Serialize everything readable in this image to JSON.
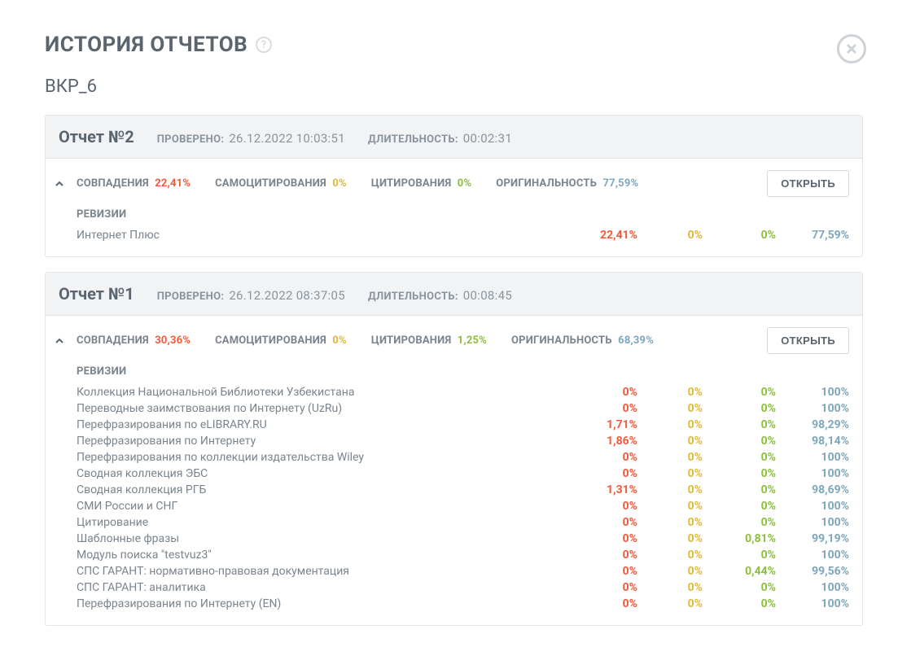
{
  "title": "ИСТОРИЯ ОТЧЕТОВ",
  "subtitle": "ВКР_6",
  "labels": {
    "checked": "ПРОВЕРЕНО:",
    "duration": "ДЛИТЕЛЬНОСТЬ:",
    "matches": "СОВПАДЕНИЯ",
    "selfcite": "САМОЦИТИРОВАНИЯ",
    "cite": "ЦИТИРОВАНИЯ",
    "orig": "ОРИГИНАЛЬНОСТЬ",
    "revisions": "РЕВИЗИИ",
    "open": "ОТКРЫТЬ"
  },
  "colors": {
    "red": "#f05a3c",
    "amber": "#e0b83a",
    "green": "#8bbf3d",
    "blue": "#7ea7bc"
  },
  "reports": [
    {
      "num": "Отчет №2",
      "checked": "26.12.2022 10:03:51",
      "duration": "00:02:31",
      "matches": "22,41%",
      "selfcite": "0%",
      "cite": "0%",
      "orig": "77,59%",
      "revisions": [
        {
          "name": "Интернет Плюс",
          "v": [
            "22,41%",
            "0%",
            "0%",
            "77,59%"
          ]
        }
      ]
    },
    {
      "num": "Отчет №1",
      "checked": "26.12.2022 08:37:05",
      "duration": "00:08:45",
      "matches": "30,36%",
      "selfcite": "0%",
      "cite": "1,25%",
      "orig": "68,39%",
      "revisions": [
        {
          "name": "Коллекция Национальной Библиотеки Узбекистана",
          "v": [
            "0%",
            "0%",
            "0%",
            "100%"
          ]
        },
        {
          "name": "Переводные заимствования по Интернету (UzRu)",
          "v": [
            "0%",
            "0%",
            "0%",
            "100%"
          ]
        },
        {
          "name": "Перефразирования по eLIBRARY.RU",
          "v": [
            "1,71%",
            "0%",
            "0%",
            "98,29%"
          ]
        },
        {
          "name": "Перефразирования по Интернету",
          "v": [
            "1,86%",
            "0%",
            "0%",
            "98,14%"
          ]
        },
        {
          "name": "Перефразирования по коллекции издательства Wiley",
          "v": [
            "0%",
            "0%",
            "0%",
            "100%"
          ]
        },
        {
          "name": "Сводная коллекция ЭБС",
          "v": [
            "0%",
            "0%",
            "0%",
            "100%"
          ]
        },
        {
          "name": "Сводная коллекция РГБ",
          "v": [
            "1,31%",
            "0%",
            "0%",
            "98,69%"
          ]
        },
        {
          "name": "СМИ России и СНГ",
          "v": [
            "0%",
            "0%",
            "0%",
            "100%"
          ]
        },
        {
          "name": "Цитирование",
          "v": [
            "0%",
            "0%",
            "0%",
            "100%"
          ]
        },
        {
          "name": "Шаблонные фразы",
          "v": [
            "0%",
            "0%",
            "0,81%",
            "99,19%"
          ]
        },
        {
          "name": "Модуль поиска \"testvuz3\"",
          "v": [
            "0%",
            "0%",
            "0%",
            "100%"
          ]
        },
        {
          "name": "СПС ГАРАНТ: нормативно-правовая документация",
          "v": [
            "0%",
            "0%",
            "0,44%",
            "99,56%"
          ]
        },
        {
          "name": "СПС ГАРАНТ: аналитика",
          "v": [
            "0%",
            "0%",
            "0%",
            "100%"
          ]
        },
        {
          "name": "Перефразирования по Интернету (EN)",
          "v": [
            "0%",
            "0%",
            "0%",
            "100%"
          ]
        }
      ]
    }
  ]
}
